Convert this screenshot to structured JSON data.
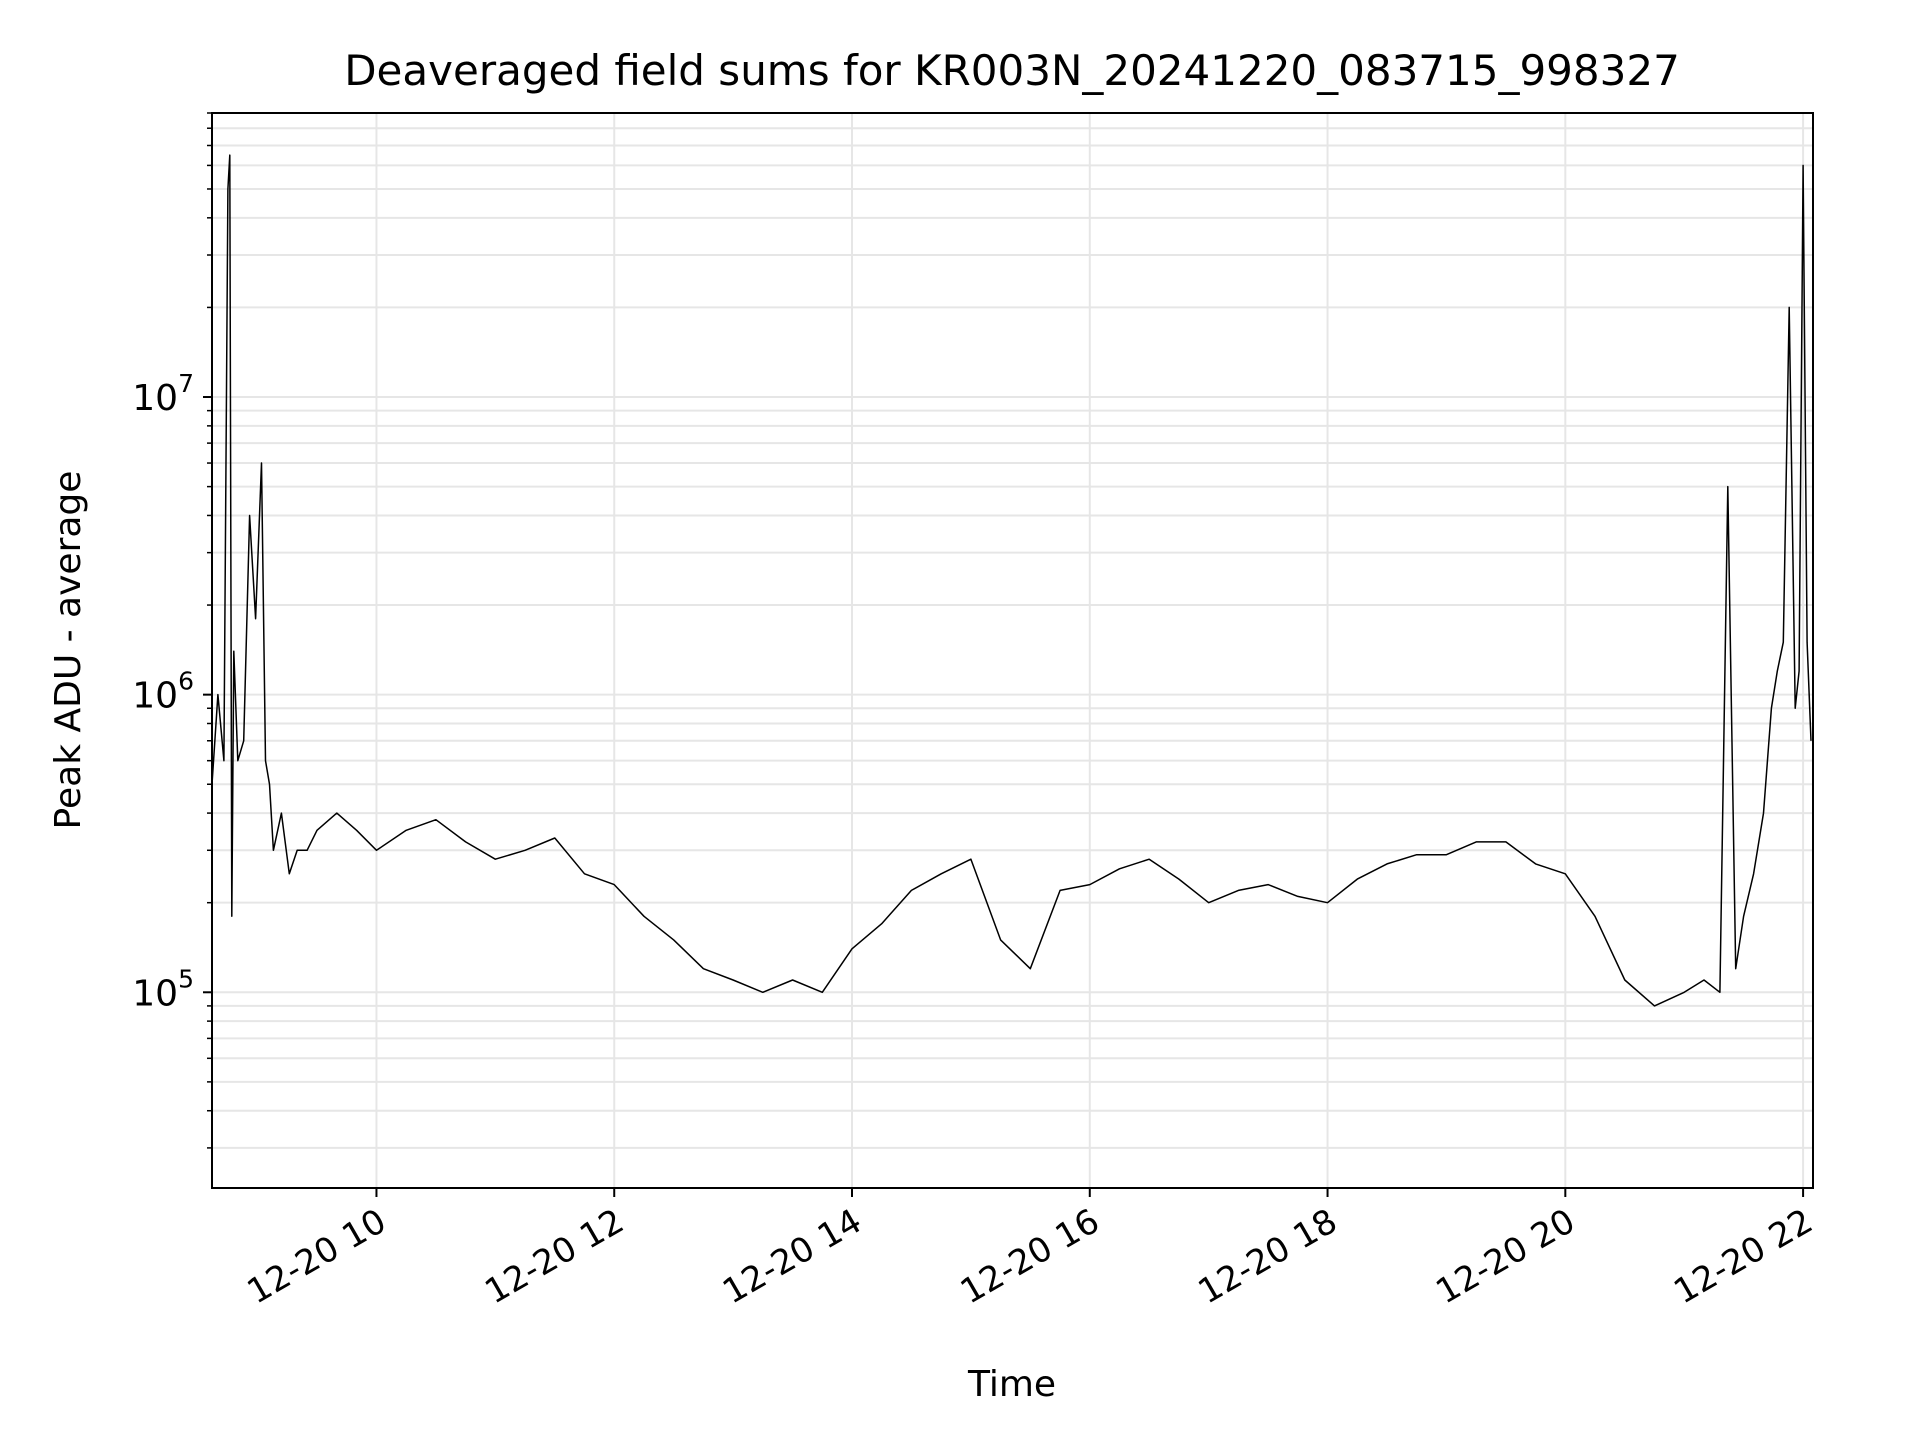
{
  "chart_data": {
    "type": "line",
    "title": "Deaveraged field sums for KR003N_20241220_083715_998327",
    "xlabel": "Time",
    "ylabel": "Peak ADU - average",
    "xlim": [
      "2024-12-20T08:37",
      "2024-12-20T22:05"
    ],
    "ylim": [
      22000,
      90000000
    ],
    "yscale": "log",
    "grid": true,
    "line_color": "#000000",
    "x_ticks": [
      {
        "value": "2024-12-20T10:00",
        "label": "12-20 10"
      },
      {
        "value": "2024-12-20T12:00",
        "label": "12-20 12"
      },
      {
        "value": "2024-12-20T14:00",
        "label": "12-20 14"
      },
      {
        "value": "2024-12-20T16:00",
        "label": "12-20 16"
      },
      {
        "value": "2024-12-20T18:00",
        "label": "12-20 18"
      },
      {
        "value": "2024-12-20T20:00",
        "label": "12-20 20"
      },
      {
        "value": "2024-12-20T22:00",
        "label": "12-20 22"
      }
    ],
    "y_ticks": [
      {
        "value": 100000,
        "label": "10",
        "exp": "5"
      },
      {
        "value": 1000000,
        "label": "10",
        "exp": "6"
      },
      {
        "value": 10000000,
        "label": "10",
        "exp": "7"
      }
    ],
    "series": [
      {
        "x": [
          "2024-12-20T08:37",
          "2024-12-20T08:40",
          "2024-12-20T08:43",
          "2024-12-20T08:45",
          "2024-12-20T08:46",
          "2024-12-20T08:47",
          "2024-12-20T08:48",
          "2024-12-20T08:50",
          "2024-12-20T08:53",
          "2024-12-20T08:56",
          "2024-12-20T08:59",
          "2024-12-20T09:02",
          "2024-12-20T09:04",
          "2024-12-20T09:06",
          "2024-12-20T09:08",
          "2024-12-20T09:12",
          "2024-12-20T09:16",
          "2024-12-20T09:20",
          "2024-12-20T09:25",
          "2024-12-20T09:30",
          "2024-12-20T09:40",
          "2024-12-20T09:50",
          "2024-12-20T10:00",
          "2024-12-20T10:15",
          "2024-12-20T10:30",
          "2024-12-20T10:45",
          "2024-12-20T11:00",
          "2024-12-20T11:15",
          "2024-12-20T11:30",
          "2024-12-20T11:45",
          "2024-12-20T12:00",
          "2024-12-20T12:15",
          "2024-12-20T12:30",
          "2024-12-20T12:45",
          "2024-12-20T13:00",
          "2024-12-20T13:15",
          "2024-12-20T13:30",
          "2024-12-20T13:45",
          "2024-12-20T14:00",
          "2024-12-20T14:15",
          "2024-12-20T14:30",
          "2024-12-20T14:45",
          "2024-12-20T15:00",
          "2024-12-20T15:15",
          "2024-12-20T15:30",
          "2024-12-20T15:45",
          "2024-12-20T16:00",
          "2024-12-20T16:15",
          "2024-12-20T16:30",
          "2024-12-20T16:45",
          "2024-12-20T17:00",
          "2024-12-20T17:15",
          "2024-12-20T17:30",
          "2024-12-20T17:45",
          "2024-12-20T18:00",
          "2024-12-20T18:15",
          "2024-12-20T18:30",
          "2024-12-20T18:45",
          "2024-12-20T19:00",
          "2024-12-20T19:15",
          "2024-12-20T19:30",
          "2024-12-20T19:45",
          "2024-12-20T20:00",
          "2024-12-20T20:15",
          "2024-12-20T20:30",
          "2024-12-20T20:45",
          "2024-12-20T21:00",
          "2024-12-20T21:10",
          "2024-12-20T21:18",
          "2024-12-20T21:22",
          "2024-12-20T21:26",
          "2024-12-20T21:30",
          "2024-12-20T21:35",
          "2024-12-20T21:40",
          "2024-12-20T21:44",
          "2024-12-20T21:47",
          "2024-12-20T21:50",
          "2024-12-20T21:53",
          "2024-12-20T21:56",
          "2024-12-20T21:58",
          "2024-12-20T22:00",
          "2024-12-20T22:02",
          "2024-12-20T22:04"
        ],
        "y": [
          500000,
          1000000,
          600000,
          50000000,
          65000000,
          180000,
          1400000,
          600000,
          700000,
          4000000,
          1800000,
          6000000,
          600000,
          500000,
          300000,
          400000,
          250000,
          300000,
          300000,
          350000,
          400000,
          350000,
          300000,
          350000,
          380000,
          320000,
          280000,
          300000,
          330000,
          250000,
          230000,
          180000,
          150000,
          120000,
          110000,
          100000,
          110000,
          100000,
          140000,
          170000,
          220000,
          250000,
          280000,
          150000,
          120000,
          220000,
          230000,
          260000,
          280000,
          240000,
          200000,
          220000,
          230000,
          210000,
          200000,
          240000,
          270000,
          290000,
          290000,
          320000,
          320000,
          270000,
          250000,
          180000,
          110000,
          90000,
          100000,
          110000,
          100000,
          5000000,
          120000,
          180000,
          250000,
          400000,
          900000,
          1200000,
          1500000,
          20000000,
          900000,
          1200000,
          60000000,
          1500000,
          700000
        ]
      }
    ]
  }
}
